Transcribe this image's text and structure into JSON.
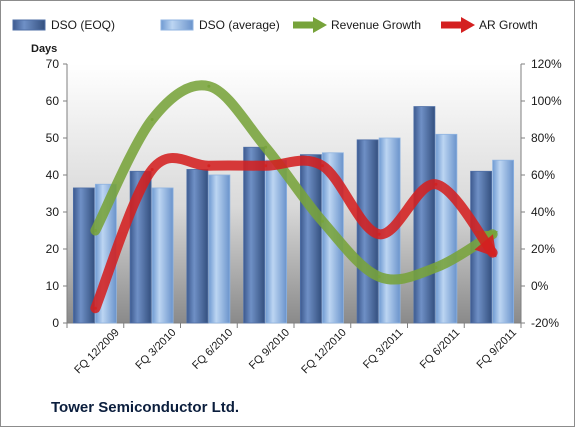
{
  "company": "Tower Semiconductor Ltd.",
  "chart_data": {
    "type": "bar",
    "categories": [
      "FQ 12/2009",
      "FQ 3/2010",
      "FQ 6/2010",
      "FQ 9/2010",
      "FQ 12/2010",
      "FQ 3/2011",
      "FQ 6/2011",
      "FQ 9/2011"
    ],
    "y_left_label": "Days",
    "y_left_lim": [
      0,
      70
    ],
    "y_left_ticks": [
      "0",
      "10",
      "20",
      "30",
      "40",
      "50",
      "60",
      "70"
    ],
    "y_right_lim": [
      -20,
      120
    ],
    "y_right_ticks": [
      "-20%",
      "0%",
      "20%",
      "40%",
      "60%",
      "80%",
      "100%",
      "120%"
    ],
    "grid": false,
    "legend_position": "top",
    "series": [
      {
        "name": "DSO (EOQ)",
        "kind": "bar",
        "axis": "left",
        "color": "#4f6fa6",
        "values": [
          36.5,
          41,
          41.5,
          47.5,
          45.5,
          49.5,
          58.5,
          41
        ]
      },
      {
        "name": "DSO (average)",
        "kind": "bar",
        "axis": "left",
        "color": "#8fb3e0",
        "values": [
          37.5,
          36.5,
          40,
          44,
          46,
          50,
          51,
          44
        ]
      },
      {
        "name": "Revenue Growth",
        "kind": "line",
        "axis": "right",
        "color": "#77a33a",
        "values": [
          30,
          90,
          108,
          75,
          35,
          5,
          10,
          28
        ]
      },
      {
        "name": "AR Growth",
        "kind": "line",
        "axis": "right",
        "color": "#d42020",
        "values": [
          -12,
          63,
          65,
          65,
          65,
          28,
          55,
          18
        ]
      }
    ]
  }
}
